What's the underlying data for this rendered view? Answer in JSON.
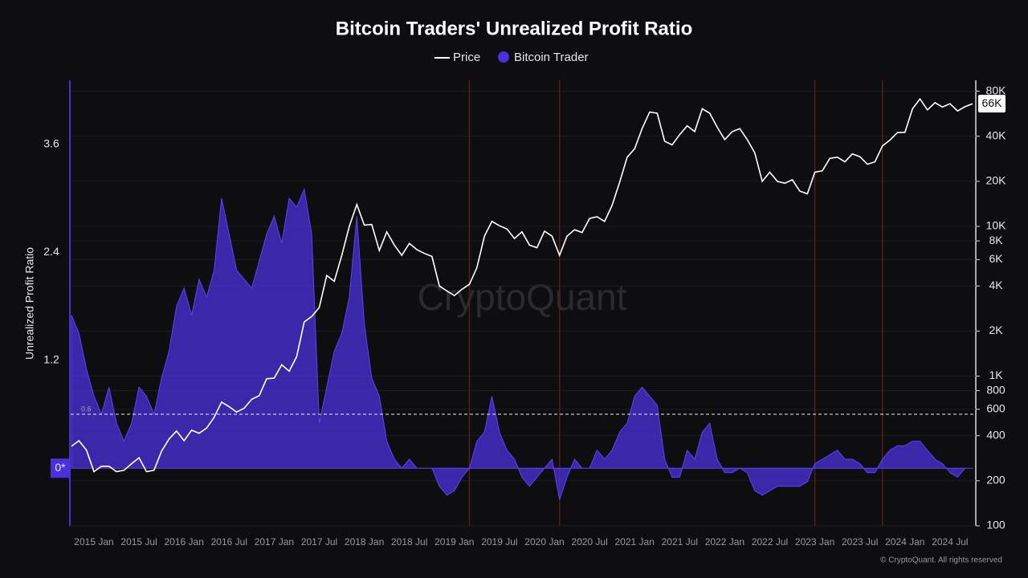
{
  "chart_data": {
    "type": "combo",
    "title": "Bitcoin Traders' Unrealized Profit Ratio",
    "ylabel": "Unrealized Profit Ratio",
    "watermark": "CryptoQuant",
    "credit": "© CryptoQuant. All rights reserved",
    "x": [
      "2014-10",
      "2014-11",
      "2014-12",
      "2015-01",
      "2015-02",
      "2015-03",
      "2015-04",
      "2015-05",
      "2015-06",
      "2015-07",
      "2015-08",
      "2015-09",
      "2015-10",
      "2015-11",
      "2015-12",
      "2016-01",
      "2016-02",
      "2016-03",
      "2016-04",
      "2016-05",
      "2016-06",
      "2016-07",
      "2016-08",
      "2016-09",
      "2016-10",
      "2016-11",
      "2016-12",
      "2017-01",
      "2017-02",
      "2017-03",
      "2017-04",
      "2017-05",
      "2017-06",
      "2017-07",
      "2017-08",
      "2017-09",
      "2017-10",
      "2017-11",
      "2017-12",
      "2018-01",
      "2018-02",
      "2018-03",
      "2018-04",
      "2018-05",
      "2018-06",
      "2018-07",
      "2018-08",
      "2018-09",
      "2018-10",
      "2018-11",
      "2018-12",
      "2019-01",
      "2019-02",
      "2019-03",
      "2019-04",
      "2019-05",
      "2019-06",
      "2019-07",
      "2019-08",
      "2019-09",
      "2019-10",
      "2019-11",
      "2019-12",
      "2020-01",
      "2020-02",
      "2020-03",
      "2020-04",
      "2020-05",
      "2020-06",
      "2020-07",
      "2020-08",
      "2020-09",
      "2020-10",
      "2020-11",
      "2020-12",
      "2021-01",
      "2021-02",
      "2021-03",
      "2021-04",
      "2021-05",
      "2021-06",
      "2021-07",
      "2021-08",
      "2021-09",
      "2021-10",
      "2021-11",
      "2021-12",
      "2022-01",
      "2022-02",
      "2022-03",
      "2022-04",
      "2022-05",
      "2022-06",
      "2022-07",
      "2022-08",
      "2022-09",
      "2022-10",
      "2022-11",
      "2022-12",
      "2023-01",
      "2023-02",
      "2023-03",
      "2023-04",
      "2023-05",
      "2023-06",
      "2023-07",
      "2023-08",
      "2023-09",
      "2023-10",
      "2023-11",
      "2023-12",
      "2024-01",
      "2024-02",
      "2024-03",
      "2024-04",
      "2024-05",
      "2024-06",
      "2024-07",
      "2024-08",
      "2024-09",
      "2024-10"
    ],
    "series": [
      {
        "name": "Price",
        "type": "line",
        "axis": "y2",
        "color": "#ffffff",
        "values": [
          340,
          370,
          320,
          230,
          250,
          250,
          230,
          235,
          260,
          285,
          230,
          235,
          315,
          380,
          430,
          370,
          435,
          415,
          450,
          530,
          670,
          625,
          575,
          610,
          700,
          740,
          960,
          970,
          1190,
          1080,
          1350,
          2300,
          2500,
          2870,
          4700,
          4300,
          6400,
          10000,
          14000,
          10200,
          10300,
          6900,
          9200,
          7500,
          6400,
          7700,
          7000,
          6600,
          6300,
          4000,
          3700,
          3450,
          3800,
          4100,
          5300,
          8600,
          10800,
          10100,
          9600,
          8300,
          9200,
          7500,
          7200,
          9300,
          8600,
          6400,
          8600,
          9500,
          9100,
          11300,
          11600,
          10800,
          13800,
          19700,
          29000,
          33000,
          45000,
          58000,
          57000,
          37000,
          35000,
          41000,
          47000,
          43000,
          61000,
          57000,
          46000,
          38000,
          43000,
          45000,
          38000,
          31000,
          20000,
          23000,
          20000,
          19400,
          20500,
          17200,
          16500,
          23000,
          23500,
          28500,
          29000,
          27000,
          30500,
          29200,
          26000,
          27000,
          34500,
          37700,
          42300,
          42500,
          61000,
          71000,
          60000,
          67000,
          62700,
          66000,
          59000,
          63000,
          66000
        ]
      },
      {
        "name": "Bitcoin Trader",
        "type": "area",
        "color": "#4a30dc",
        "values": [
          1.7,
          1.5,
          1.1,
          0.8,
          0.6,
          0.9,
          0.5,
          0.3,
          0.5,
          0.9,
          0.8,
          0.6,
          1.0,
          1.3,
          1.8,
          2.0,
          1.7,
          2.1,
          1.9,
          2.2,
          3.0,
          2.6,
          2.2,
          2.1,
          2.0,
          2.3,
          2.6,
          2.8,
          2.5,
          3.0,
          2.9,
          3.1,
          2.6,
          0.5,
          0.9,
          1.3,
          1.5,
          1.9,
          2.8,
          1.6,
          1.0,
          0.8,
          0.3,
          0.1,
          0.0,
          0.1,
          0.0,
          0.0,
          0.0,
          -0.2,
          -0.3,
          -0.25,
          -0.1,
          0.0,
          0.3,
          0.4,
          0.8,
          0.4,
          0.2,
          0.1,
          -0.1,
          -0.2,
          -0.1,
          0.0,
          0.1,
          -0.35,
          -0.1,
          0.1,
          0.0,
          0.0,
          0.2,
          0.1,
          0.2,
          0.4,
          0.5,
          0.8,
          0.9,
          0.8,
          0.7,
          0.1,
          -0.1,
          -0.1,
          0.2,
          0.1,
          0.4,
          0.5,
          0.1,
          -0.05,
          -0.05,
          0.0,
          -0.05,
          -0.25,
          -0.3,
          -0.25,
          -0.2,
          -0.2,
          -0.2,
          -0.2,
          -0.15,
          0.05,
          0.1,
          0.15,
          0.2,
          0.1,
          0.1,
          0.05,
          -0.05,
          -0.05,
          0.1,
          0.2,
          0.25,
          0.25,
          0.3,
          0.3,
          0.2,
          0.1,
          0.05,
          -0.05,
          -0.1,
          0.0,
          0.0
        ]
      }
    ],
    "ylim": [
      -0.64,
      4.31
    ],
    "yticks": [
      {
        "value": 0,
        "label": "0*"
      },
      1.2,
      2.4,
      3.6
    ],
    "y2lim": [
      100,
      94600
    ],
    "y2log": true,
    "y2ticks": [
      100,
      200,
      400,
      600,
      800,
      {
        "value": 1000,
        "label": "1K"
      },
      {
        "value": 2000,
        "label": "2K"
      },
      {
        "value": 4000,
        "label": "4K"
      },
      {
        "value": 6000,
        "label": "6K"
      },
      {
        "value": 8000,
        "label": "8K"
      },
      {
        "value": 10000,
        "label": "10K"
      },
      {
        "value": 20000,
        "label": "20K"
      },
      {
        "value": 40000,
        "label": "40K"
      },
      {
        "value": 80000,
        "label": "80K"
      }
    ],
    "xticks": [
      {
        "value": "2015-01",
        "label": "2015 Jan"
      },
      {
        "value": "2015-07",
        "label": "2015 Jul"
      },
      {
        "value": "2016-01",
        "label": "2016 Jan"
      },
      {
        "value": "2016-07",
        "label": "2016 Jul"
      },
      {
        "value": "2017-01",
        "label": "2017 Jan"
      },
      {
        "value": "2017-07",
        "label": "2017 Jul"
      },
      {
        "value": "2018-01",
        "label": "2018 Jan"
      },
      {
        "value": "2018-07",
        "label": "2018 Jul"
      },
      {
        "value": "2019-01",
        "label": "2019 Jan"
      },
      {
        "value": "2019-07",
        "label": "2019 Jul"
      },
      {
        "value": "2020-01",
        "label": "2020 Jan"
      },
      {
        "value": "2020-07",
        "label": "2020 Jul"
      },
      {
        "value": "2021-01",
        "label": "2021 Jan"
      },
      {
        "value": "2021-07",
        "label": "2021 Jul"
      },
      {
        "value": "2022-01",
        "label": "2022 Jan"
      },
      {
        "value": "2022-07",
        "label": "2022 Jul"
      },
      {
        "value": "2023-01",
        "label": "2023 Jan"
      },
      {
        "value": "2023-07",
        "label": "2023 Jul"
      },
      {
        "value": "2024-01",
        "label": "2024 Jan"
      },
      {
        "value": "2024-07",
        "label": "2024 Jul"
      }
    ],
    "reference_line": {
      "value": 0.6,
      "label": "0.6"
    },
    "price_badge": "66K",
    "vertical_lines": [
      "2019-03",
      "2020-03",
      "2023-01",
      "2023-10"
    ],
    "grid": true,
    "legend": "top"
  }
}
